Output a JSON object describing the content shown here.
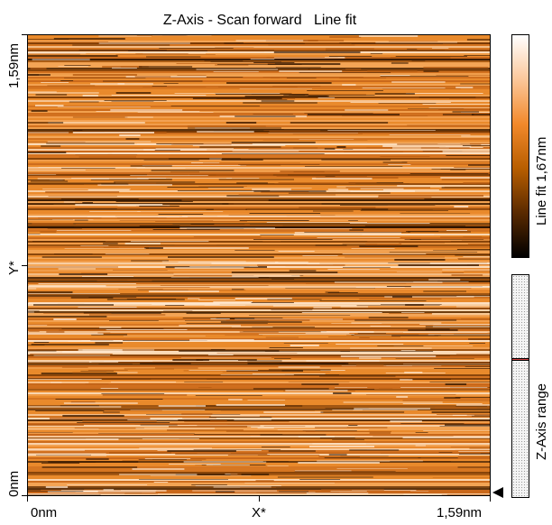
{
  "title": "Z-Axis - Scan forward   Line fit",
  "scan": {
    "x_axis": {
      "min_label": "0nm",
      "mid_label": "X*",
      "max_label": "1,59nm"
    },
    "y_axis": {
      "min_label": "0nm",
      "mid_label": "Y*",
      "max_label": "1,59nm"
    }
  },
  "colorbar": {
    "label": "Line fit 1,67nm",
    "colors": [
      "#000000",
      "#5a2a00",
      "#b85e00",
      "#f2892b",
      "#fbc79a",
      "#ffffff"
    ]
  },
  "z_range": {
    "label": "Z-Axis range",
    "marker_color": "#d04040"
  },
  "colors": {
    "scan_base": "#e98a2c"
  }
}
